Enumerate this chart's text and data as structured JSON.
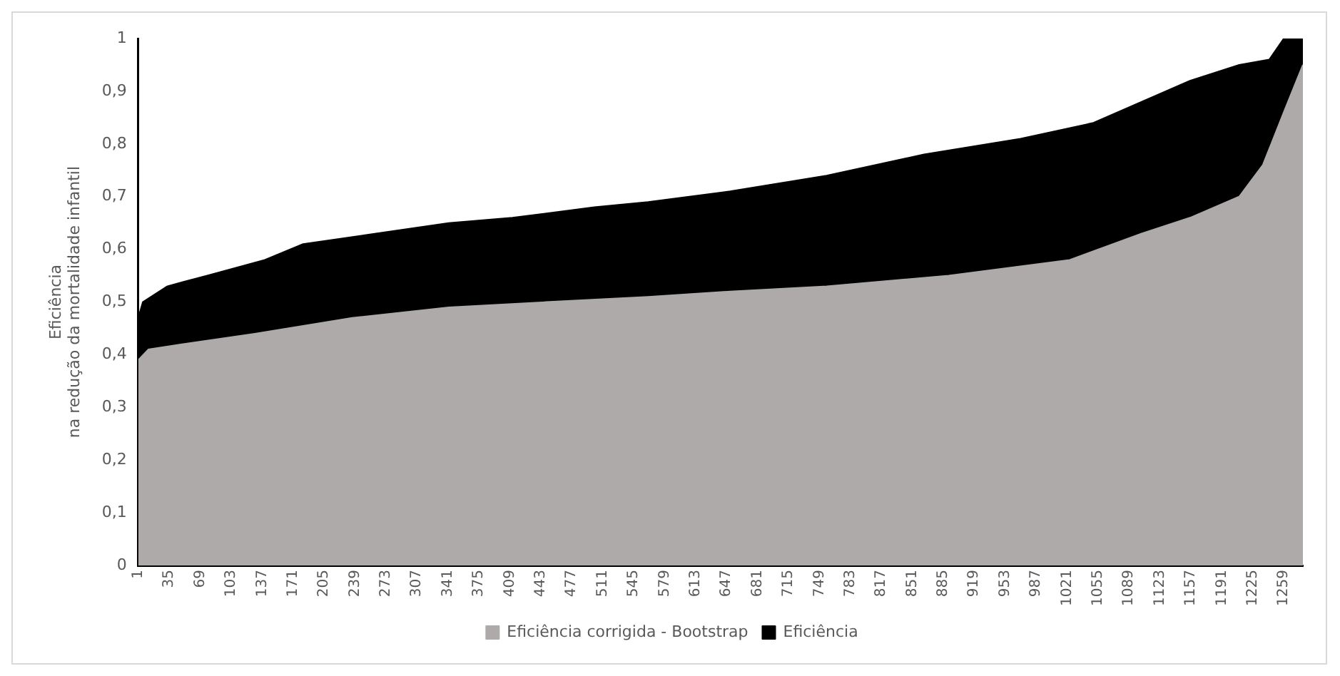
{
  "chart_data": {
    "type": "area",
    "ylabel": "Eficiência\nna redução da mortalidade infantil",
    "legend": "bottom",
    "grid": false,
    "xlim": [
      1,
      1280
    ],
    "xticks": [
      1,
      35,
      69,
      103,
      137,
      171,
      205,
      239,
      273,
      307,
      341,
      375,
      409,
      443,
      477,
      511,
      545,
      579,
      613,
      647,
      681,
      715,
      749,
      783,
      817,
      851,
      885,
      919,
      953,
      987,
      1021,
      1055,
      1089,
      1123,
      1157,
      1191,
      1225,
      1259
    ],
    "ylim": [
      0,
      1
    ],
    "yticks": [
      0,
      {
        "value": 0.1,
        "label": "0,1"
      },
      {
        "value": 0.2,
        "label": "0,2"
      },
      {
        "value": 0.3,
        "label": "0,3"
      },
      {
        "value": 0.4,
        "label": "0,4"
      },
      {
        "value": 0.5,
        "label": "0,5"
      },
      {
        "value": 0.6,
        "label": "0,6"
      },
      {
        "value": 0.7,
        "label": "0,7"
      },
      {
        "value": 0.8,
        "label": "0,8"
      },
      {
        "value": 0.9,
        "label": "0,9"
      },
      1
    ],
    "series": [
      {
        "name": "Eficiência corrigida - Bootstrap",
        "color": "#aeaaaa",
        "x": [
          1,
          12,
          49,
          129,
          236,
          342,
          449,
          561,
          651,
          757,
          891,
          1024,
          1103,
          1156,
          1210,
          1236,
          1259,
          1280
        ],
        "values": [
          0.39,
          0.41,
          0.42,
          0.44,
          0.47,
          0.49,
          0.5,
          0.51,
          0.52,
          0.53,
          0.55,
          0.58,
          0.63,
          0.66,
          0.7,
          0.76,
          0.86,
          0.95
        ]
      },
      {
        "name": "Eficiência",
        "color": "#000000",
        "x": [
          1,
          6,
          33,
          76,
          140,
          182,
          262,
          342,
          412,
          502,
          561,
          651,
          757,
          864,
          970,
          1050,
          1103,
          1156,
          1210,
          1243,
          1259,
          1280
        ],
        "values": [
          0.47,
          0.5,
          0.53,
          0.55,
          0.58,
          0.61,
          0.63,
          0.65,
          0.66,
          0.68,
          0.69,
          0.71,
          0.74,
          0.78,
          0.81,
          0.84,
          0.88,
          0.92,
          0.95,
          0.96,
          1,
          1
        ]
      }
    ]
  }
}
